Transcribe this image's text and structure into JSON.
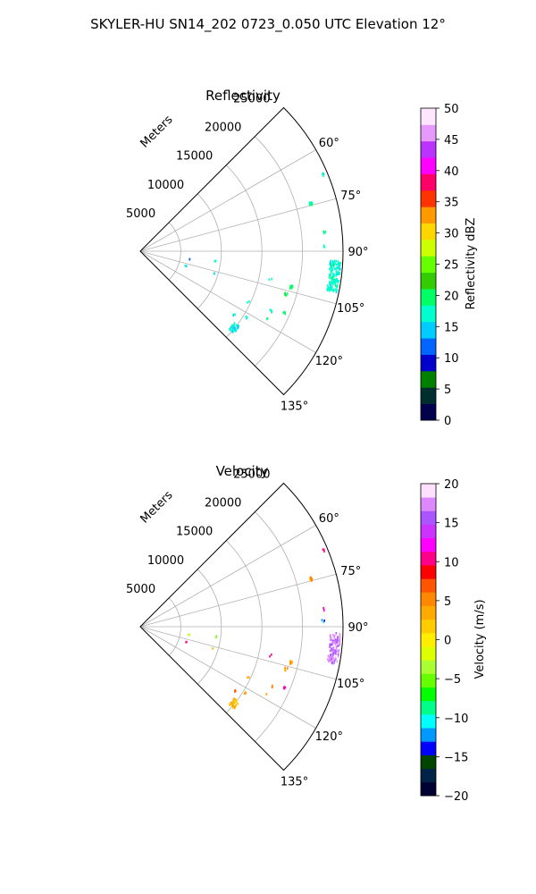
{
  "title": "SKYLER-HU  SN14_202  0723_0.050 UTC Elevation 12°",
  "chart_data": [
    {
      "type": "polar-sector",
      "title": "Reflectivity",
      "radial_label": "Meters",
      "r_ticks": [
        5000,
        10000,
        15000,
        20000,
        25000
      ],
      "theta_ticks_deg": [
        60,
        75,
        90,
        105,
        120,
        135
      ],
      "theta_range_deg": [
        45,
        135
      ],
      "r_max": 25000,
      "grid": true,
      "colorbar": {
        "label": "Reflectivity dBZ",
        "min": 0,
        "max": 50,
        "ticks": [
          0,
          5,
          10,
          15,
          20,
          25,
          30,
          35,
          40,
          45,
          50
        ],
        "colors": [
          "#00004c",
          "#002e2e",
          "#008000",
          "#0000cc",
          "#0066ff",
          "#00ccff",
          "#00ffcc",
          "#00ff66",
          "#33cc00",
          "#66ff00",
          "#ccff00",
          "#ffd700",
          "#ff9900",
          "#ff3300",
          "#ff0066",
          "#ff00ff",
          "#bb33ff",
          "#e699ff",
          "#ffe6ff"
        ]
      },
      "clusters": [
        {
          "r": 24000,
          "theta": 97,
          "value": 17,
          "n": 140
        },
        {
          "r": 21800,
          "theta": 74,
          "value": 18,
          "n": 12
        },
        {
          "r": 24500,
          "theta": 67,
          "value": 17,
          "n": 5
        },
        {
          "r": 22800,
          "theta": 84,
          "value": 18,
          "n": 4
        },
        {
          "r": 22500,
          "theta": 88,
          "value": 16,
          "n": 3
        },
        {
          "r": 19000,
          "theta": 103,
          "value": 20,
          "n": 10
        },
        {
          "r": 18600,
          "theta": 106,
          "value": 20,
          "n": 6
        },
        {
          "r": 16300,
          "theta": 102,
          "value": 16,
          "n": 2
        },
        {
          "r": 17600,
          "theta": 114,
          "value": 18,
          "n": 4
        },
        {
          "r": 19200,
          "theta": 113,
          "value": 19,
          "n": 5
        },
        {
          "r": 14800,
          "theta": 129,
          "value": 16,
          "n": 35
        },
        {
          "r": 15200,
          "theta": 122,
          "value": 17,
          "n": 3
        },
        {
          "r": 14600,
          "theta": 115,
          "value": 17,
          "n": 2
        },
        {
          "r": 17600,
          "theta": 118,
          "value": 18,
          "n": 2
        },
        {
          "r": 13900,
          "theta": 124,
          "value": 16,
          "n": 3
        },
        {
          "r": 5800,
          "theta": 107,
          "value": 16,
          "n": 2
        },
        {
          "r": 6000,
          "theta": 98,
          "value": 12,
          "n": 2
        },
        {
          "r": 9300,
          "theta": 106,
          "value": 16,
          "n": 2
        },
        {
          "r": 9300,
          "theta": 97,
          "value": 16,
          "n": 2
        }
      ]
    },
    {
      "type": "polar-sector",
      "title": "Velocity",
      "radial_label": "Meters",
      "r_ticks": [
        5000,
        10000,
        15000,
        20000,
        25000
      ],
      "theta_ticks_deg": [
        60,
        75,
        90,
        105,
        120,
        135
      ],
      "theta_range_deg": [
        45,
        135
      ],
      "r_max": 25000,
      "grid": true,
      "colorbar": {
        "label": "Velocity (m/s)",
        "min": -20,
        "max": 20,
        "ticks": [
          -20,
          -15,
          -10,
          -5,
          0,
          5,
          10,
          15,
          20
        ],
        "colors": [
          "#000033",
          "#002244",
          "#004400",
          "#0000ff",
          "#0099ff",
          "#00ffff",
          "#00ff88",
          "#00ff00",
          "#66ff00",
          "#aaff33",
          "#ddff00",
          "#ffee00",
          "#ffcc00",
          "#ffaa00",
          "#ff8800",
          "#ff5500",
          "#ff0000",
          "#ff0088",
          "#ff00ff",
          "#cc33ff",
          "#aa55ff",
          "#dd88ff",
          "#ffe0ff"
        ]
      },
      "clusters": [
        {
          "r": 24000,
          "theta": 96,
          "value": 17,
          "n": 120
        },
        {
          "r": 21800,
          "theta": 74,
          "value": 5,
          "n": 12
        },
        {
          "r": 24500,
          "theta": 67,
          "value": 11,
          "n": 3
        },
        {
          "r": 22800,
          "theta": 84,
          "value": 11,
          "n": 3
        },
        {
          "r": 22500,
          "theta": 88,
          "value": -12,
          "n": 3
        },
        {
          "r": 19000,
          "theta": 103,
          "value": 4,
          "n": 10
        },
        {
          "r": 18600,
          "theta": 106,
          "value": 4,
          "n": 6
        },
        {
          "r": 16300,
          "theta": 102,
          "value": 11,
          "n": 2
        },
        {
          "r": 17600,
          "theta": 114,
          "value": 6,
          "n": 4
        },
        {
          "r": 19200,
          "theta": 113,
          "value": 11,
          "n": 5
        },
        {
          "r": 14800,
          "theta": 129,
          "value": 3,
          "n": 35
        },
        {
          "r": 15200,
          "theta": 122,
          "value": 3,
          "n": 3
        },
        {
          "r": 14600,
          "theta": 115,
          "value": 3,
          "n": 2
        },
        {
          "r": 17600,
          "theta": 118,
          "value": 3,
          "n": 2
        },
        {
          "r": 13900,
          "theta": 124,
          "value": 6,
          "n": 3
        },
        {
          "r": 5800,
          "theta": 107,
          "value": 11,
          "n": 2
        },
        {
          "r": 6000,
          "theta": 98,
          "value": -3,
          "n": 2
        },
        {
          "r": 9300,
          "theta": 106,
          "value": 3,
          "n": 2
        },
        {
          "r": 9300,
          "theta": 97,
          "value": -4,
          "n": 2
        }
      ]
    }
  ]
}
